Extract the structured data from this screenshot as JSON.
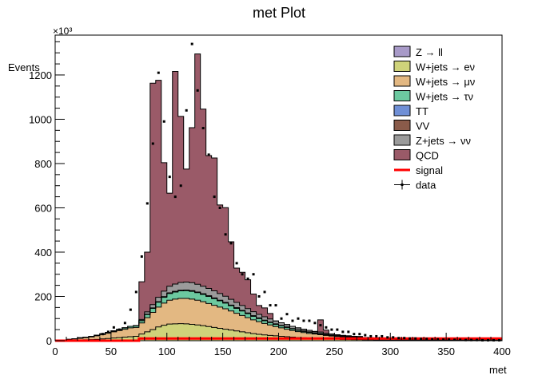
{
  "chart_data": {
    "type": "area",
    "title": "met Plot",
    "xlabel": "met",
    "ylabel": "Events",
    "y_multiplier_text": "×10³",
    "xlim": [
      0,
      400
    ],
    "ylim": [
      0,
      1380
    ],
    "xticks": [
      0,
      50,
      100,
      150,
      200,
      250,
      300,
      350,
      400
    ],
    "yticks": [
      0,
      200,
      400,
      600,
      800,
      1000,
      1200
    ],
    "bin_width": 5,
    "bin_start": 0,
    "legend_placement": "top-right",
    "series": [
      {
        "name": "Z → ll",
        "legend_label": "Z → ll",
        "color": "#a89ac8",
        "values": [
          0,
          0,
          0,
          0,
          0,
          0,
          0,
          0,
          0,
          0,
          0,
          0,
          0,
          0,
          0,
          0,
          0,
          0,
          0,
          0,
          0,
          0,
          0,
          0,
          0,
          0,
          0,
          0,
          0,
          0,
          0,
          0,
          0,
          0,
          0,
          0,
          0,
          0,
          0,
          0,
          0,
          0,
          0,
          0,
          0,
          0,
          0,
          0,
          0,
          0,
          0,
          0,
          0,
          0,
          0,
          0,
          0,
          0,
          0,
          0,
          0,
          0,
          0,
          0,
          0,
          0,
          0,
          0,
          0,
          0,
          0,
          0,
          0,
          0,
          0,
          0,
          0,
          0,
          0,
          0
        ]
      },
      {
        "name": "W+jets → eν",
        "legend_label": "W+jets → eν",
        "color": "#cfd37a",
        "values": [
          0,
          0,
          1,
          2,
          3,
          4,
          5,
          6,
          8,
          10,
          12,
          14,
          16,
          18,
          20,
          30,
          40,
          50,
          62,
          70,
          75,
          76,
          77,
          76,
          74,
          71,
          68,
          64,
          60,
          56,
          52,
          48,
          44,
          40,
          36,
          32,
          29,
          26,
          24,
          22,
          20,
          18,
          16,
          14,
          13,
          12,
          11,
          10,
          9,
          8,
          7,
          6,
          6,
          5,
          5,
          4,
          4,
          3,
          3,
          3,
          2,
          2,
          2,
          2,
          1,
          1,
          1,
          1,
          1,
          1,
          1,
          1,
          1,
          1,
          1,
          1,
          1,
          1,
          1,
          1
        ]
      },
      {
        "name": "W+jets → μν",
        "legend_label": "W+jets → μν",
        "color": "#e3b882",
        "values": [
          0,
          0,
          4,
          6,
          8,
          10,
          12,
          16,
          20,
          24,
          28,
          32,
          36,
          40,
          40,
          50,
          64,
          78,
          90,
          100,
          108,
          112,
          114,
          115,
          114,
          112,
          108,
          104,
          100,
          96,
          92,
          86,
          80,
          74,
          68,
          62,
          57,
          52,
          47,
          42,
          38,
          34,
          30,
          27,
          24,
          21,
          19,
          17,
          15,
          13,
          12,
          11,
          10,
          9,
          8,
          7,
          6,
          5,
          5,
          4,
          4,
          3,
          3,
          3,
          2,
          2,
          2,
          2,
          2,
          1,
          1,
          1,
          1,
          1,
          1,
          1,
          1,
          1,
          1,
          1
        ]
      },
      {
        "name": "W+jets → τν",
        "legend_label": "W+jets → τν",
        "color": "#6cc9a0",
        "values": [
          0,
          0,
          1,
          1,
          2,
          2,
          2,
          3,
          3,
          4,
          4,
          5,
          6,
          7,
          8,
          10,
          14,
          18,
          22,
          26,
          30,
          32,
          34,
          35,
          35,
          34,
          33,
          32,
          30,
          28,
          26,
          24,
          22,
          20,
          18,
          16,
          14,
          12,
          11,
          10,
          9,
          8,
          7,
          6,
          5,
          5,
          4,
          4,
          3,
          3,
          3,
          2,
          2,
          2,
          2,
          1,
          1,
          1,
          1,
          1,
          1,
          1,
          1,
          1,
          1,
          1,
          1,
          1,
          1,
          1,
          1,
          1,
          1,
          1,
          1,
          1,
          1,
          1,
          1,
          1
        ]
      },
      {
        "name": "TT",
        "legend_label": "TT",
        "color": "#6f8fd6",
        "values": [
          0,
          0,
          0,
          0,
          0,
          0,
          0,
          0,
          0,
          0,
          0,
          0,
          0,
          0,
          0,
          1,
          1,
          1,
          1,
          2,
          2,
          2,
          2,
          2,
          2,
          2,
          2,
          2,
          2,
          2,
          2,
          2,
          2,
          2,
          2,
          2,
          2,
          2,
          1,
          1,
          1,
          1,
          1,
          1,
          1,
          1,
          1,
          1,
          1,
          1,
          1,
          1,
          1,
          1,
          1,
          0,
          0,
          0,
          0,
          0,
          0,
          0,
          0,
          0,
          0,
          0,
          0,
          0,
          0,
          0,
          0,
          0,
          0,
          0,
          0,
          0,
          0,
          0,
          0,
          0
        ]
      },
      {
        "name": "VV",
        "legend_label": "VV",
        "color": "#8a5b4a",
        "values": [
          0,
          0,
          0,
          0,
          0,
          0,
          0,
          0,
          0,
          0,
          0,
          0,
          0,
          0,
          0,
          0,
          1,
          1,
          1,
          1,
          1,
          1,
          1,
          1,
          1,
          1,
          1,
          1,
          1,
          1,
          1,
          1,
          1,
          1,
          1,
          1,
          1,
          1,
          1,
          1,
          1,
          1,
          1,
          1,
          1,
          1,
          1,
          1,
          0,
          0,
          0,
          0,
          0,
          0,
          0,
          0,
          0,
          0,
          0,
          0,
          0,
          0,
          0,
          0,
          0,
          0,
          0,
          0,
          0,
          0,
          0,
          0,
          0,
          0,
          0,
          0,
          0,
          0,
          0,
          0
        ]
      },
      {
        "name": "Z+jets → νν",
        "legend_label": "Z+jets → νν",
        "color": "#9b9b9b",
        "values": [
          0,
          0,
          0,
          0,
          0,
          0,
          0,
          0,
          0,
          0,
          0,
          0,
          0,
          0,
          0,
          5,
          10,
          15,
          20,
          25,
          30,
          33,
          35,
          36,
          36,
          35,
          34,
          33,
          32,
          30,
          28,
          26,
          24,
          22,
          20,
          18,
          16,
          15,
          14,
          13,
          12,
          11,
          10,
          9,
          8,
          7,
          6,
          6,
          5,
          5,
          4,
          4,
          3,
          3,
          3,
          2,
          2,
          2,
          2,
          2,
          1,
          1,
          1,
          1,
          1,
          1,
          1,
          1,
          1,
          1,
          1,
          1,
          1,
          1,
          1,
          1,
          1,
          1,
          1,
          1
        ]
      },
      {
        "name": "QCD",
        "legend_label": "QCD",
        "color": "#9a5a68",
        "values": [
          0,
          0,
          0,
          0,
          0,
          0,
          0,
          0,
          0,
          0,
          0,
          0,
          0,
          0,
          0,
          170,
          270,
          1000,
          980,
          580,
          420,
          960,
          750,
          510,
          700,
          1040,
          800,
          600,
          600,
          400,
          400,
          260,
          155,
          150,
          130,
          80,
          40,
          40,
          25,
          0,
          0,
          0,
          0,
          0,
          0,
          0,
          0,
          55,
          15,
          0,
          0,
          0,
          0,
          0,
          0,
          0,
          0,
          0,
          0,
          0,
          0,
          0,
          0,
          0,
          0,
          0,
          0,
          0,
          0,
          0,
          0,
          0,
          0,
          0,
          0,
          0,
          0,
          0,
          0,
          0
        ]
      },
      {
        "name": "signal",
        "legend_label": "signal",
        "color": "#ff0000",
        "values": [
          0,
          0,
          0,
          0,
          0,
          0,
          0,
          0,
          0,
          0,
          0,
          0,
          0,
          0,
          0,
          10,
          10,
          10,
          10,
          10,
          10,
          10,
          10,
          10,
          10,
          10,
          10,
          10,
          10,
          10,
          10,
          10,
          10,
          10,
          10,
          10,
          10,
          10,
          10,
          10,
          10,
          10,
          10,
          10,
          10,
          10,
          10,
          10,
          10,
          10,
          10,
          10,
          10,
          10,
          10,
          10,
          10,
          10,
          10,
          10,
          10,
          10,
          10,
          10,
          10,
          10,
          10,
          10,
          10,
          10,
          10,
          10,
          10,
          10,
          10,
          10,
          10,
          10,
          10,
          10
        ]
      }
    ],
    "data": {
      "name": "data",
      "legend_label": "data",
      "x": [
        42.5,
        47.5,
        52.5,
        57.5,
        62.5,
        67.5,
        72.5,
        77.5,
        82.5,
        87.5,
        92.5,
        97.5,
        102.5,
        107.5,
        112.5,
        117.5,
        122.5,
        127.5,
        132.5,
        137.5,
        142.5,
        147.5,
        152.5,
        157.5,
        162.5,
        167.5,
        172.5,
        177.5,
        182.5,
        187.5,
        192.5,
        197.5,
        202.5,
        207.5,
        212.5,
        217.5,
        222.5,
        227.5,
        232.5,
        237.5,
        242.5,
        247.5,
        252.5,
        257.5,
        262.5,
        267.5,
        272.5,
        277.5,
        282.5,
        287.5,
        292.5,
        297.5,
        302.5,
        307.5,
        312.5,
        317.5,
        322.5,
        327.5,
        332.5,
        337.5,
        342.5,
        347.5,
        352.5,
        357.5,
        362.5,
        367.5,
        372.5,
        377.5,
        382.5,
        387.5,
        392.5,
        397.5
      ],
      "y": [
        30,
        40,
        60,
        50,
        80,
        140,
        220,
        380,
        620,
        890,
        1210,
        990,
        740,
        650,
        700,
        1040,
        1340,
        1130,
        960,
        840,
        650,
        600,
        480,
        440,
        350,
        300,
        280,
        300,
        200,
        220,
        160,
        160,
        100,
        120,
        90,
        100,
        90,
        90,
        80,
        70,
        60,
        50,
        50,
        40,
        40,
        30,
        30,
        25,
        20,
        20,
        20,
        15,
        15,
        12,
        12,
        10,
        10,
        8,
        8,
        6,
        6,
        5,
        5,
        4,
        4,
        3,
        3,
        3,
        2,
        2,
        2,
        2
      ]
    }
  }
}
